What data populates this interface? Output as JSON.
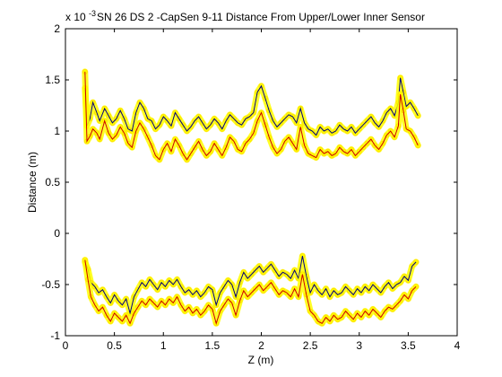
{
  "chart_data": {
    "type": "line",
    "title": "SN 26 DS 2 -CapSen 9-11 Distance From Upper/Lower Inner Sensor",
    "xlabel": "Z (m)",
    "ylabel": "Distance (m)",
    "exponent_label": "x 10",
    "exponent_power": "-3",
    "xlim": [
      0,
      4
    ],
    "ylim": [
      -1,
      2
    ],
    "xticks": [
      0,
      0.5,
      1,
      1.5,
      2,
      2.5,
      3,
      3.5,
      4
    ],
    "xtick_labels": [
      "0",
      "0.5",
      "1",
      "1.5",
      "2",
      "2.5",
      "3",
      "3.5",
      "4"
    ],
    "yticks": [
      -1,
      -0.5,
      0,
      0.5,
      1,
      1.5,
      2
    ],
    "ytick_labels": [
      "-1",
      "-0.5",
      "0",
      "0.5",
      "1",
      "1.5",
      "2"
    ],
    "grid": false,
    "marker_color": "#ffff00",
    "marker_edge_color": "#ffd200",
    "series": [
      {
        "color": "#000080",
        "x": [
          0.2,
          0.22,
          0.25,
          0.28,
          0.32,
          0.35,
          0.4,
          0.44,
          0.48,
          0.52,
          0.56,
          0.6,
          0.64,
          0.68,
          0.72,
          0.76,
          0.8,
          0.84,
          0.88,
          0.92,
          0.96,
          1.0,
          1.04,
          1.08,
          1.12,
          1.16,
          1.2,
          1.24,
          1.28,
          1.32,
          1.36,
          1.4,
          1.44,
          1.48,
          1.52,
          1.56,
          1.6,
          1.64,
          1.68,
          1.72,
          1.76,
          1.8,
          1.84,
          1.88,
          1.92,
          1.96,
          2.0,
          2.04,
          2.08,
          2.12,
          2.16,
          2.2,
          2.24,
          2.28,
          2.32,
          2.36,
          2.4,
          2.44,
          2.48,
          2.52,
          2.56,
          2.6,
          2.64,
          2.68,
          2.72,
          2.76,
          2.8,
          2.84,
          2.88,
          2.92,
          2.96,
          3.0,
          3.04,
          3.08,
          3.12,
          3.16,
          3.2,
          3.24,
          3.28,
          3.32,
          3.36,
          3.4,
          3.42,
          3.45,
          3.48,
          3.52,
          3.56,
          3.6
        ],
        "y": [
          1.42,
          1.05,
          1.12,
          1.28,
          1.18,
          1.1,
          1.22,
          1.15,
          1.08,
          1.12,
          1.2,
          1.12,
          1.02,
          1.0,
          1.18,
          1.28,
          1.22,
          1.12,
          1.1,
          1.02,
          1.06,
          1.14,
          1.1,
          1.05,
          1.18,
          1.12,
          1.06,
          1.0,
          1.04,
          1.1,
          1.14,
          1.08,
          1.02,
          1.06,
          1.12,
          1.08,
          1.02,
          1.1,
          1.16,
          1.12,
          1.08,
          1.06,
          1.12,
          1.14,
          1.18,
          1.38,
          1.44,
          1.32,
          1.2,
          1.1,
          1.04,
          1.08,
          1.12,
          1.16,
          1.14,
          1.08,
          1.22,
          1.08,
          1.02,
          1.0,
          0.96,
          1.04,
          1.0,
          1.02,
          0.98,
          1.0,
          1.06,
          1.02,
          1.0,
          1.04,
          0.98,
          1.02,
          1.06,
          1.1,
          1.14,
          1.08,
          1.04,
          1.1,
          1.18,
          1.22,
          1.15,
          1.28,
          1.52,
          1.38,
          1.24,
          1.28,
          1.22,
          1.15
        ]
      },
      {
        "color": "#cc0000",
        "x": [
          0.2,
          0.22,
          0.25,
          0.28,
          0.32,
          0.35,
          0.4,
          0.44,
          0.48,
          0.52,
          0.56,
          0.6,
          0.64,
          0.68,
          0.72,
          0.76,
          0.8,
          0.84,
          0.88,
          0.92,
          0.96,
          1.0,
          1.04,
          1.08,
          1.12,
          1.16,
          1.2,
          1.24,
          1.28,
          1.32,
          1.36,
          1.4,
          1.44,
          1.48,
          1.52,
          1.56,
          1.6,
          1.64,
          1.68,
          1.72,
          1.76,
          1.8,
          1.84,
          1.88,
          1.92,
          1.96,
          2.0,
          2.04,
          2.08,
          2.12,
          2.16,
          2.2,
          2.24,
          2.28,
          2.32,
          2.36,
          2.4,
          2.44,
          2.48,
          2.52,
          2.56,
          2.6,
          2.64,
          2.68,
          2.72,
          2.76,
          2.8,
          2.84,
          2.88,
          2.92,
          2.96,
          3.0,
          3.04,
          3.08,
          3.12,
          3.16,
          3.2,
          3.24,
          3.28,
          3.32,
          3.36,
          3.4,
          3.42,
          3.45,
          3.48,
          3.52,
          3.56,
          3.6
        ],
        "y": [
          1.58,
          0.9,
          0.95,
          1.02,
          0.98,
          0.92,
          1.1,
          0.98,
          0.92,
          0.96,
          1.04,
          0.98,
          0.88,
          0.84,
          1.0,
          1.08,
          1.02,
          0.94,
          0.86,
          0.76,
          0.72,
          0.82,
          0.88,
          0.8,
          0.92,
          0.86,
          0.78,
          0.72,
          0.78,
          0.84,
          0.9,
          0.82,
          0.76,
          0.8,
          0.88,
          0.82,
          0.76,
          0.84,
          0.94,
          0.9,
          0.82,
          0.8,
          0.88,
          0.92,
          0.98,
          1.1,
          1.18,
          1.06,
          0.94,
          0.84,
          0.78,
          0.82,
          0.9,
          0.94,
          0.88,
          0.82,
          1.04,
          0.86,
          0.78,
          0.76,
          0.74,
          0.82,
          0.78,
          0.8,
          0.76,
          0.78,
          0.84,
          0.8,
          0.78,
          0.82,
          0.76,
          0.8,
          0.84,
          0.88,
          0.92,
          0.86,
          0.82,
          0.88,
          0.96,
          1.0,
          0.94,
          1.05,
          1.36,
          1.2,
          1.02,
          1.0,
          0.94,
          0.86
        ]
      },
      {
        "color": "#000080",
        "x": [
          0.2,
          0.23,
          0.26,
          0.3,
          0.34,
          0.38,
          0.42,
          0.46,
          0.5,
          0.54,
          0.58,
          0.62,
          0.66,
          0.7,
          0.74,
          0.78,
          0.82,
          0.86,
          0.9,
          0.94,
          0.98,
          1.02,
          1.06,
          1.1,
          1.14,
          1.18,
          1.22,
          1.26,
          1.3,
          1.34,
          1.38,
          1.42,
          1.46,
          1.5,
          1.54,
          1.58,
          1.62,
          1.66,
          1.7,
          1.74,
          1.78,
          1.82,
          1.86,
          1.9,
          1.94,
          1.98,
          2.02,
          2.06,
          2.1,
          2.14,
          2.18,
          2.22,
          2.26,
          2.3,
          2.34,
          2.38,
          2.42,
          2.46,
          2.5,
          2.54,
          2.58,
          2.62,
          2.66,
          2.7,
          2.74,
          2.78,
          2.82,
          2.86,
          2.9,
          2.94,
          2.98,
          3.02,
          3.06,
          3.1,
          3.14,
          3.18,
          3.22,
          3.26,
          3.3,
          3.34,
          3.38,
          3.42,
          3.46,
          3.5,
          3.54,
          3.58
        ],
        "y": [
          -0.28,
          -0.35,
          -0.48,
          -0.52,
          -0.58,
          -0.55,
          -0.62,
          -0.68,
          -0.6,
          -0.66,
          -0.7,
          -0.64,
          -0.78,
          -0.62,
          -0.55,
          -0.48,
          -0.52,
          -0.45,
          -0.5,
          -0.55,
          -0.48,
          -0.52,
          -0.46,
          -0.5,
          -0.45,
          -0.52,
          -0.58,
          -0.55,
          -0.6,
          -0.56,
          -0.62,
          -0.58,
          -0.52,
          -0.55,
          -0.7,
          -0.58,
          -0.52,
          -0.46,
          -0.5,
          -0.62,
          -0.48,
          -0.38,
          -0.44,
          -0.4,
          -0.36,
          -0.32,
          -0.38,
          -0.34,
          -0.3,
          -0.36,
          -0.42,
          -0.38,
          -0.4,
          -0.44,
          -0.36,
          -0.44,
          -0.22,
          -0.42,
          -0.58,
          -0.5,
          -0.56,
          -0.6,
          -0.54,
          -0.62,
          -0.56,
          -0.6,
          -0.58,
          -0.52,
          -0.56,
          -0.6,
          -0.54,
          -0.58,
          -0.52,
          -0.56,
          -0.5,
          -0.54,
          -0.58,
          -0.52,
          -0.48,
          -0.54,
          -0.5,
          -0.48,
          -0.42,
          -0.46,
          -0.32,
          -0.28
        ]
      },
      {
        "color": "#cc0000",
        "x": [
          0.2,
          0.23,
          0.26,
          0.3,
          0.34,
          0.38,
          0.42,
          0.46,
          0.5,
          0.54,
          0.58,
          0.62,
          0.66,
          0.7,
          0.74,
          0.78,
          0.82,
          0.86,
          0.9,
          0.94,
          0.98,
          1.02,
          1.06,
          1.1,
          1.14,
          1.18,
          1.22,
          1.26,
          1.3,
          1.34,
          1.38,
          1.42,
          1.46,
          1.5,
          1.54,
          1.58,
          1.62,
          1.66,
          1.7,
          1.74,
          1.78,
          1.82,
          1.86,
          1.9,
          1.94,
          1.98,
          2.02,
          2.06,
          2.1,
          2.14,
          2.18,
          2.22,
          2.26,
          2.3,
          2.34,
          2.38,
          2.42,
          2.46,
          2.5,
          2.54,
          2.58,
          2.62,
          2.66,
          2.7,
          2.74,
          2.78,
          2.82,
          2.86,
          2.9,
          2.94,
          2.98,
          3.02,
          3.06,
          3.1,
          3.14,
          3.18,
          3.22,
          3.26,
          3.3,
          3.34,
          3.38,
          3.42,
          3.46,
          3.5,
          3.54,
          3.58
        ],
        "y": [
          -0.26,
          -0.45,
          -0.62,
          -0.7,
          -0.76,
          -0.72,
          -0.8,
          -0.86,
          -0.78,
          -0.82,
          -0.86,
          -0.8,
          -0.88,
          -0.78,
          -0.72,
          -0.66,
          -0.7,
          -0.64,
          -0.68,
          -0.72,
          -0.66,
          -0.7,
          -0.64,
          -0.68,
          -0.62,
          -0.7,
          -0.76,
          -0.72,
          -0.78,
          -0.74,
          -0.8,
          -0.76,
          -0.7,
          -0.74,
          -0.88,
          -0.76,
          -0.7,
          -0.64,
          -0.68,
          -0.8,
          -0.66,
          -0.56,
          -0.62,
          -0.58,
          -0.54,
          -0.5,
          -0.56,
          -0.52,
          -0.48,
          -0.54,
          -0.6,
          -0.56,
          -0.58,
          -0.62,
          -0.54,
          -0.62,
          -0.4,
          -0.6,
          -0.76,
          -0.8,
          -0.86,
          -0.88,
          -0.82,
          -0.86,
          -0.8,
          -0.84,
          -0.82,
          -0.76,
          -0.8,
          -0.84,
          -0.78,
          -0.82,
          -0.76,
          -0.8,
          -0.74,
          -0.78,
          -0.82,
          -0.76,
          -0.72,
          -0.74,
          -0.7,
          -0.66,
          -0.6,
          -0.64,
          -0.56,
          -0.52
        ]
      }
    ]
  }
}
